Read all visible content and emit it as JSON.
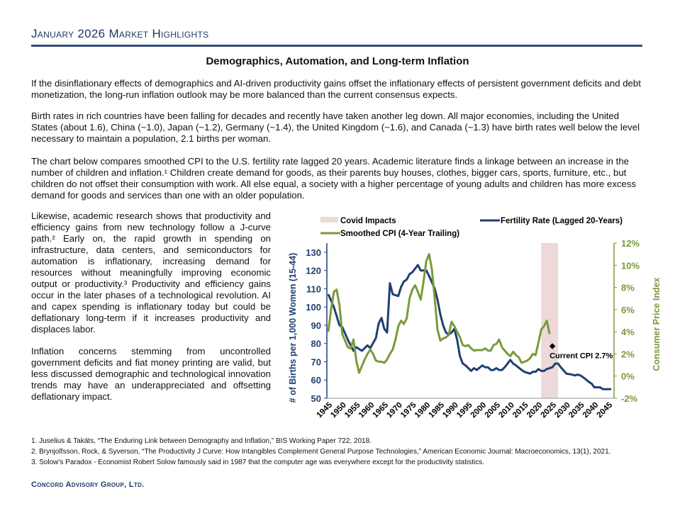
{
  "header": {
    "title": "January 2026 Market Highlights",
    "article_title": "Demographics, Automation, and Long-term Inflation"
  },
  "paragraphs": [
    "If the disinflationary effects of demographics and AI-driven productivity gains offset the inflationary effects of persistent government deficits and debt monetization, the long-run inflation outlook may be more balanced than the current consensus expects.",
    "Birth rates in rich countries have been falling for decades and recently have taken another leg down.  All major economies, including the United States (about 1.6), China (~1.0), Japan (~1.2), Germany (~1.4), the United Kingdom (~1.6), and Canada (~1.3) have birth rates well below the level necessary to maintain a population, 2.1 births per woman.",
    "The chart below compares smoothed CPI to the U.S. fertility rate lagged 20 years.  Academic literature finds a linkage between an increase in the number of children and inflation.¹ Children create demand for goods, as their parents buy houses, clothes, bigger cars, sports, furniture, etc., but children do not offset their consumption with work.  All else equal, a society with a higher percentage of young adults and children has more excess demand for goods and services than one with an older population.",
    "Likewise, academic research shows that productivity and efficiency gains from new technology follow a J-curve path.² Early on, the rapid growth in spending on infrastructure, data centers, and semiconductors for automation is inflationary, increasing demand for resources without meaningfully improving economic output or productivity.³ Productivity and efficiency gains occur in the later phases of a technological revolution.  AI and capex spending is inflationary today but could be deflationary long-term if it increases productivity and displaces labor.",
    "Inflation concerns stemming from uncontrolled government deficits and fiat money printing are valid, but less discussed demographic and technological innovation trends may have an underappreciated and offsetting deflationary impact."
  ],
  "footnotes": [
    "1. Juselius & Takáts, “The Enduring Link between Demography and Inflation,” BIS Working Paper 722, 2018.",
    "2. Brynjolfsson, Rock, & Syverson, “The Productivity J Curve: How Intangibles Complement General Purpose Technologies,” American Economic Journal: Macroeconomics, 13(1), 2021.",
    "3. Solow’s Paradox - Economist Robert Solow famously said in 1987 that the computer age was everywhere except for the productivity statistics."
  ],
  "footer": "Concord Advisory Group, Ltd.",
  "chart_data": {
    "type": "line",
    "ylabel": "# of Births per 1,000 Women (15-44)",
    "y2label": "Consumer Price Index",
    "ylim": [
      50,
      135
    ],
    "y2lim": [
      -2,
      12
    ],
    "xlim": [
      1944.5,
      2047
    ],
    "yticks": [
      50,
      60,
      70,
      80,
      90,
      100,
      110,
      120,
      130
    ],
    "y2ticks": [
      "-2%",
      "0%",
      "2%",
      "4%",
      "6%",
      "8%",
      "10%",
      "12%"
    ],
    "xticks": [
      1945,
      1950,
      1955,
      1960,
      1965,
      1970,
      1975,
      1980,
      1985,
      1990,
      1995,
      2000,
      2005,
      2010,
      2015,
      2020,
      2025,
      2030,
      2035,
      2040,
      2045
    ],
    "legend": {
      "covid": "Covid Impacts",
      "fertility": "Fertility Rate (Lagged 20-Years)",
      "cpi": "Smoothed CPI (4-Year Trailing)",
      "placement": "top"
    },
    "colors": {
      "fertility": "#1f3f73",
      "cpi": "#7a9a3a",
      "covid": "#ecd9d8",
      "axis2": "#7a9a3a",
      "axis1": "#1f3f73"
    },
    "covid_band": [
      2021,
      2027
    ],
    "annotation": {
      "label": "Current CPI 2.7%",
      "x": 2025,
      "y": 2.7
    },
    "series": [
      {
        "name": "Fertility Rate (Lagged 20-Years)",
        "axis": "left",
        "points": [
          [
            1945,
            107
          ],
          [
            1947,
            100
          ],
          [
            1949,
            90
          ],
          [
            1950,
            89
          ],
          [
            1952,
            82
          ],
          [
            1954,
            76
          ],
          [
            1955,
            78
          ],
          [
            1957,
            76
          ],
          [
            1959,
            79
          ],
          [
            1960,
            77.5
          ],
          [
            1962,
            83
          ],
          [
            1963,
            91
          ],
          [
            1964,
            94
          ],
          [
            1965,
            88
          ],
          [
            1966,
            86
          ],
          [
            1967,
            113
          ],
          [
            1968,
            107
          ],
          [
            1970,
            106
          ],
          [
            1971,
            111
          ],
          [
            1972,
            114
          ],
          [
            1973,
            115
          ],
          [
            1974,
            118
          ],
          [
            1975,
            119
          ],
          [
            1977,
            123
          ],
          [
            1978,
            120
          ],
          [
            1980,
            120
          ],
          [
            1981,
            117
          ],
          [
            1983,
            110
          ],
          [
            1984,
            104
          ],
          [
            1985,
            96
          ],
          [
            1986,
            90
          ],
          [
            1987,
            86
          ],
          [
            1988,
            85
          ],
          [
            1989,
            86
          ],
          [
            1990,
            88
          ],
          [
            1991,
            82
          ],
          [
            1992,
            73
          ],
          [
            1993,
            69
          ],
          [
            1994,
            68
          ],
          [
            1996,
            65
          ],
          [
            1997,
            66.5
          ],
          [
            1998,
            65.5
          ],
          [
            2000,
            68
          ],
          [
            2001,
            67
          ],
          [
            2002,
            67
          ],
          [
            2003,
            65.5
          ],
          [
            2004,
            65.5
          ],
          [
            2005,
            66.5
          ],
          [
            2006,
            65.5
          ],
          [
            2007,
            65.5
          ],
          [
            2008,
            67
          ],
          [
            2010,
            71
          ],
          [
            2011,
            69
          ],
          [
            2012,
            68
          ],
          [
            2014,
            65.5
          ],
          [
            2015,
            64.5
          ],
          [
            2017,
            63.5
          ],
          [
            2018,
            64.5
          ],
          [
            2019,
            64.5
          ],
          [
            2020,
            66
          ],
          [
            2021,
            65
          ],
          [
            2022,
            65
          ],
          [
            2023,
            66
          ],
          [
            2025,
            67
          ],
          [
            2026,
            69
          ],
          [
            2027,
            69
          ],
          [
            2028,
            67
          ],
          [
            2030,
            63.5
          ],
          [
            2032,
            63
          ],
          [
            2033,
            62.5
          ],
          [
            2034,
            63
          ],
          [
            2035,
            62.5
          ],
          [
            2036,
            61.5
          ],
          [
            2038,
            59
          ],
          [
            2039,
            58
          ],
          [
            2040,
            56
          ],
          [
            2042,
            56
          ],
          [
            2043,
            55
          ],
          [
            2046,
            55
          ]
        ]
      },
      {
        "name": "Smoothed CPI (4-Year Trailing)",
        "axis": "right",
        "points": [
          [
            1945,
            4.0
          ],
          [
            1946,
            6.0
          ],
          [
            1947,
            7.6
          ],
          [
            1948,
            7.8
          ],
          [
            1949,
            6.4
          ],
          [
            1950,
            3.8
          ],
          [
            1951,
            3.2
          ],
          [
            1952,
            2.6
          ],
          [
            1953,
            2.5
          ],
          [
            1954,
            3.3
          ],
          [
            1955,
            1.4
          ],
          [
            1956,
            0.3
          ],
          [
            1957,
            0.9
          ],
          [
            1958,
            1.5
          ],
          [
            1959,
            2.0
          ],
          [
            1960,
            2.4
          ],
          [
            1961,
            2.0
          ],
          [
            1962,
            1.4
          ],
          [
            1963,
            1.3
          ],
          [
            1964,
            1.3
          ],
          [
            1965,
            1.2
          ],
          [
            1966,
            1.5
          ],
          [
            1967,
            2.0
          ],
          [
            1968,
            2.4
          ],
          [
            1969,
            3.3
          ],
          [
            1970,
            4.5
          ],
          [
            1971,
            5.0
          ],
          [
            1972,
            4.7
          ],
          [
            1973,
            5.2
          ],
          [
            1974,
            7.0
          ],
          [
            1975,
            7.8
          ],
          [
            1976,
            8.2
          ],
          [
            1977,
            7.6
          ],
          [
            1978,
            6.9
          ],
          [
            1979,
            8.5
          ],
          [
            1980,
            10.4
          ],
          [
            1981,
            11.0
          ],
          [
            1982,
            9.6
          ],
          [
            1983,
            7.0
          ],
          [
            1984,
            4.2
          ],
          [
            1985,
            3.2
          ],
          [
            1986,
            3.4
          ],
          [
            1987,
            3.5
          ],
          [
            1988,
            3.7
          ],
          [
            1989,
            4.9
          ],
          [
            1990,
            4.5
          ],
          [
            1991,
            4.0
          ],
          [
            1992,
            3.5
          ],
          [
            1993,
            2.8
          ],
          [
            1994,
            2.7
          ],
          [
            1995,
            2.8
          ],
          [
            1996,
            2.5
          ],
          [
            1997,
            2.3
          ],
          [
            1998,
            2.35
          ],
          [
            1999,
            2.35
          ],
          [
            2000,
            2.35
          ],
          [
            2001,
            2.5
          ],
          [
            2002,
            2.3
          ],
          [
            2003,
            2.3
          ],
          [
            2004,
            2.8
          ],
          [
            2005,
            2.9
          ],
          [
            2006,
            3.3
          ],
          [
            2007,
            2.6
          ],
          [
            2008,
            2.3
          ],
          [
            2009,
            2.0
          ],
          [
            2010,
            1.8
          ],
          [
            2011,
            2.2
          ],
          [
            2012,
            1.9
          ],
          [
            2013,
            1.7
          ],
          [
            2014,
            1.2
          ],
          [
            2015,
            1.3
          ],
          [
            2016,
            1.4
          ],
          [
            2017,
            1.6
          ],
          [
            2018,
            2.0
          ],
          [
            2019,
            1.9
          ],
          [
            2020,
            3.0
          ],
          [
            2021,
            4.2
          ],
          [
            2022,
            4.5
          ],
          [
            2023,
            5.0
          ],
          [
            2024,
            3.8
          ]
        ]
      }
    ]
  }
}
